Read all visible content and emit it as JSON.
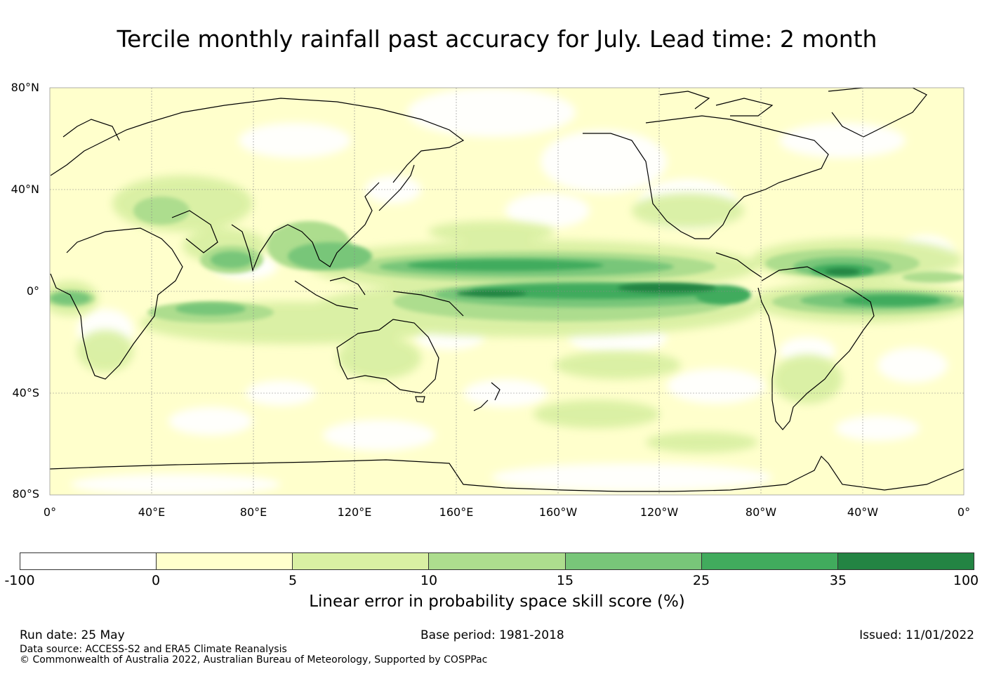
{
  "title": "Tercile monthly rainfall past accuracy for July. Lead time: 2 month",
  "map": {
    "lat_labels": [
      "80°N",
      "40°N",
      "0°",
      "40°S",
      "80°S"
    ],
    "lon_labels": [
      "0°",
      "40°E",
      "80°E",
      "120°E",
      "160°E",
      "160°W",
      "120°W",
      "80°W",
      "40°W",
      "0°"
    ]
  },
  "colorbar": {
    "ticks": [
      "-100",
      "0",
      "5",
      "10",
      "15",
      "25",
      "35",
      "100"
    ],
    "colors": [
      "#ffffff",
      "#ffffcc",
      "#d9f0a3",
      "#addd8e",
      "#78c679",
      "#41ab5d",
      "#238443"
    ],
    "label": "Linear error in probability space skill score (%)"
  },
  "footer": {
    "run_date": "Run date: 25 May",
    "base_period": "Base period: 1981-2018",
    "issued": "Issued: 11/01/2022",
    "data_source": "Data source: ACCESS-S2 and ERA5 Climate Reanalysis",
    "copyright": "© Commonwealth of Australia 2022, Australian Bureau of Meteorology, Supported by COSPPac"
  }
}
